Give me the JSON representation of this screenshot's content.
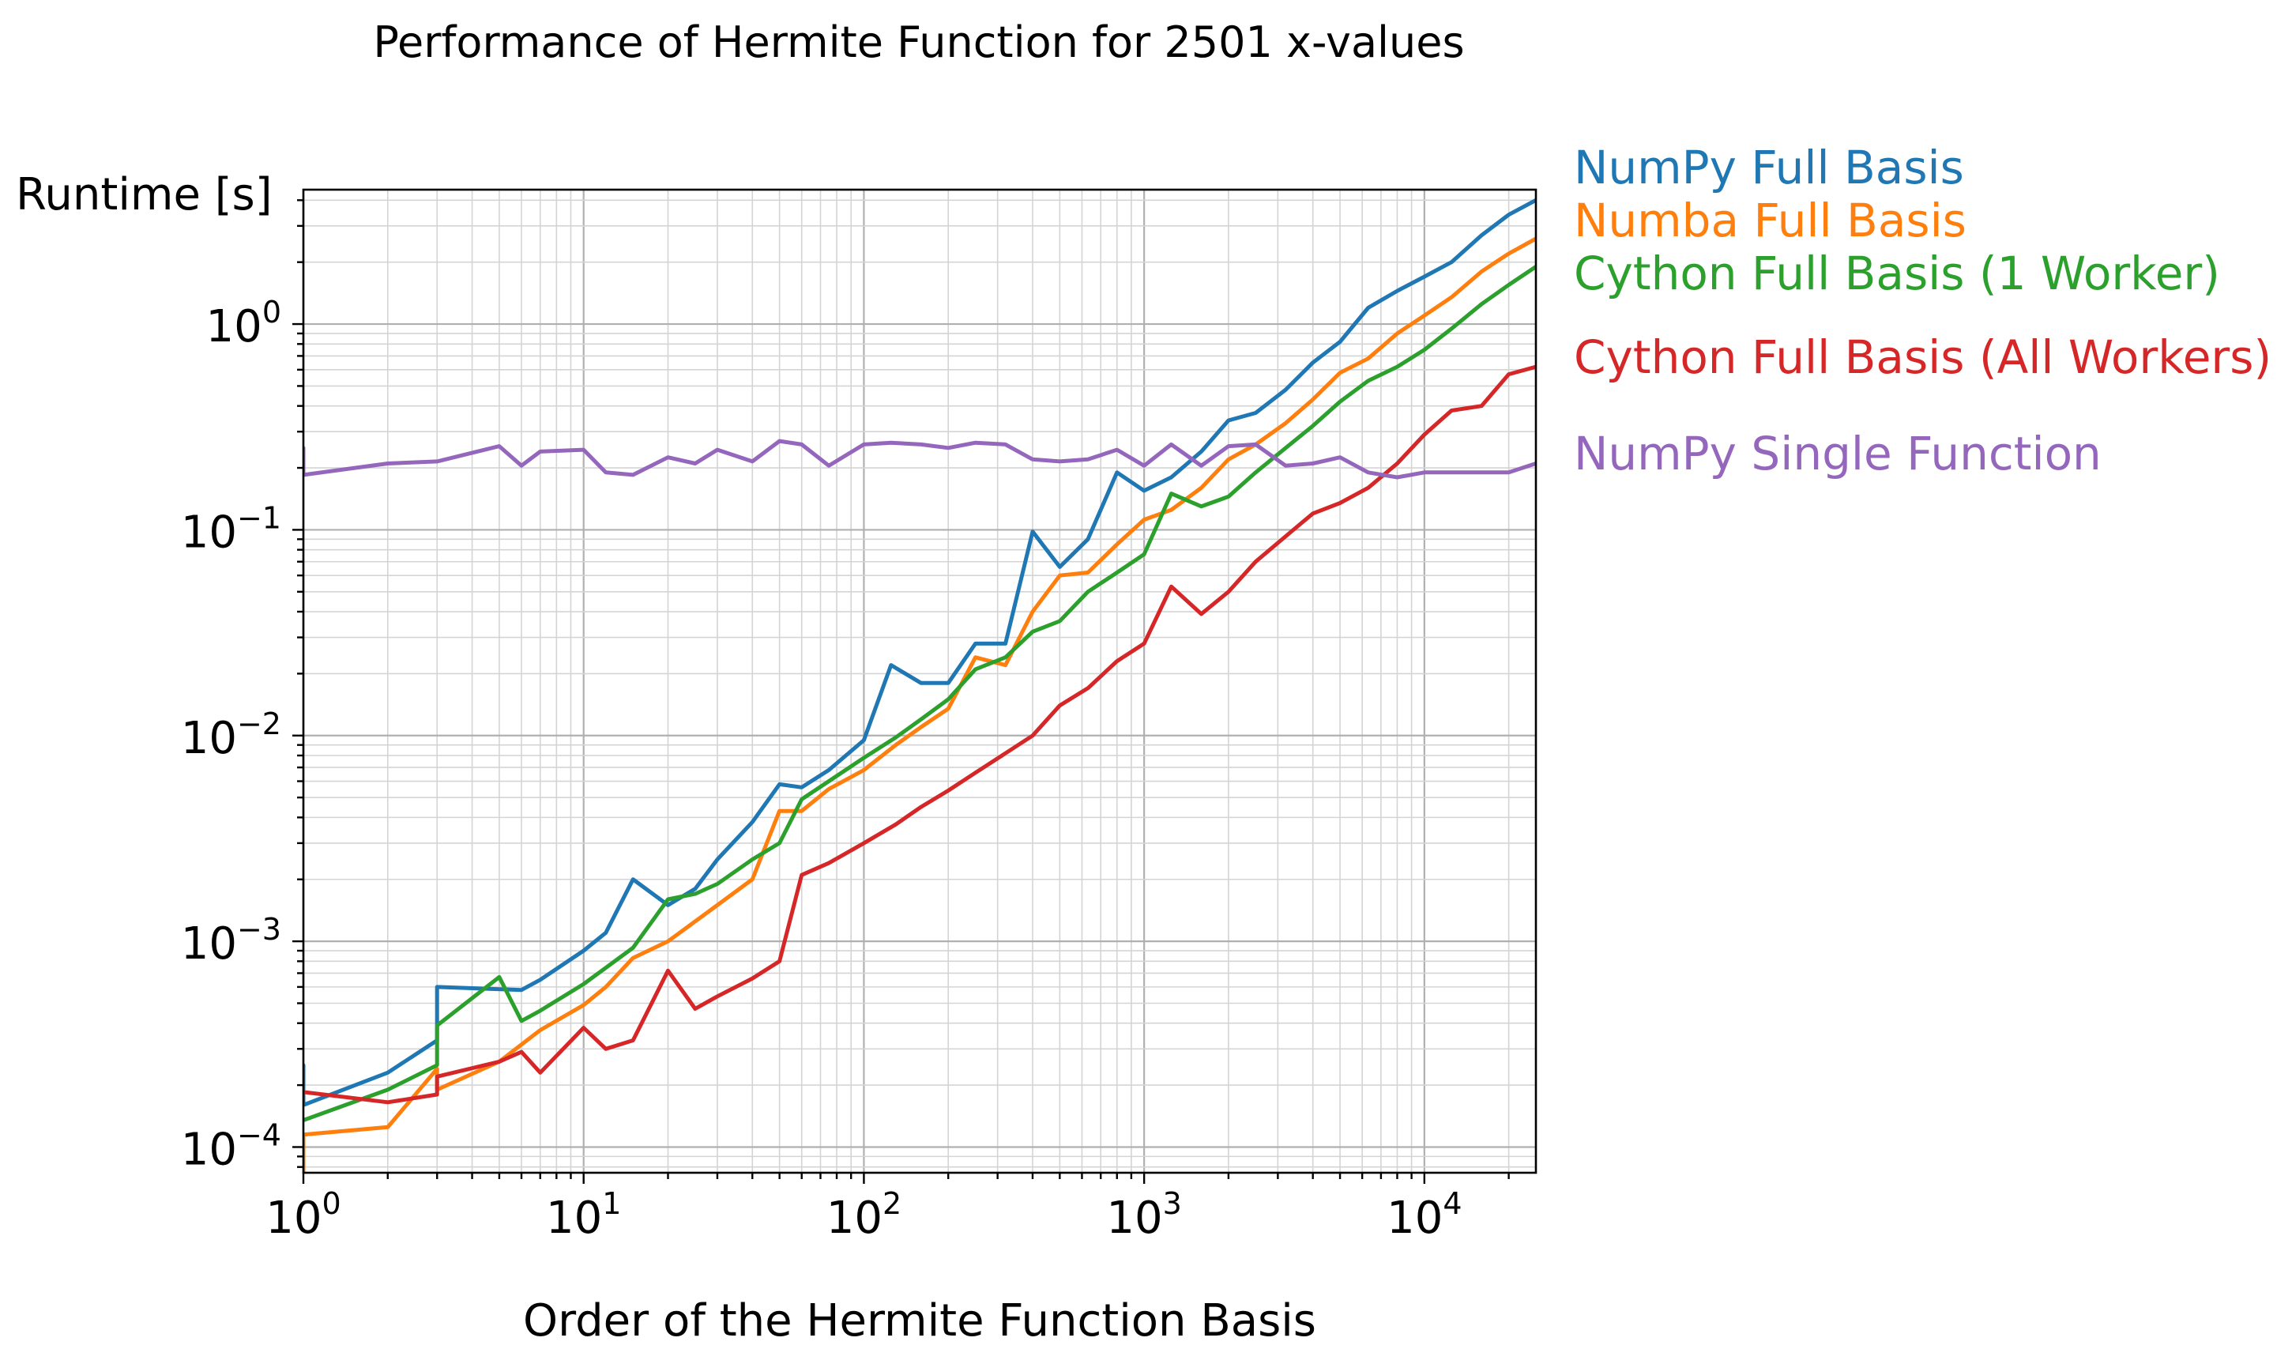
{
  "chart_data": {
    "type": "line",
    "title": "Performance of Hermite Function for 2501 x-values",
    "xlabel": "Order of the Hermite Function Basis",
    "ylabel": "Runtime [s]",
    "xscale": "log",
    "yscale": "log",
    "xlim": [
      1,
      25000
    ],
    "ylim": [
      7.5e-05,
      4.5
    ],
    "grid": "on (major and minor)",
    "legend": "right, outside plot",
    "x_ticks": [
      {
        "base": "10",
        "exp": "0",
        "value": 1
      },
      {
        "base": "10",
        "exp": "1",
        "value": 10
      },
      {
        "base": "10",
        "exp": "2",
        "value": 100
      },
      {
        "base": "10",
        "exp": "3",
        "value": 1000
      },
      {
        "base": "10",
        "exp": "4",
        "value": 10000
      }
    ],
    "y_ticks": [
      {
        "base": "10",
        "exp": "−4",
        "value": 0.0001
      },
      {
        "base": "10",
        "exp": "−3",
        "value": 0.001
      },
      {
        "base": "10",
        "exp": "−2",
        "value": 0.01
      },
      {
        "base": "10",
        "exp": "−1",
        "value": 0.1
      },
      {
        "base": "10",
        "exp": "0",
        "value": 1
      }
    ],
    "series": [
      {
        "name": "NumPy Full Basis",
        "color": "#1f77b4",
        "points": [
          [
            1,
            0.00025
          ],
          [
            1,
            0.00016
          ],
          [
            2,
            0.00023
          ],
          [
            3,
            0.00033
          ],
          [
            3,
            0.0006
          ],
          [
            6,
            0.00058
          ],
          [
            7,
            0.00065
          ],
          [
            10,
            0.0009
          ],
          [
            12,
            0.0011
          ],
          [
            15,
            0.002
          ],
          [
            20,
            0.0015
          ],
          [
            25,
            0.0018
          ],
          [
            30,
            0.0025
          ],
          [
            40,
            0.0038
          ],
          [
            50,
            0.0058
          ],
          [
            60,
            0.0056
          ],
          [
            75,
            0.0068
          ],
          [
            100,
            0.0095
          ],
          [
            125,
            0.022
          ],
          [
            160,
            0.018
          ],
          [
            200,
            0.018
          ],
          [
            250,
            0.028
          ],
          [
            320,
            0.028
          ],
          [
            400,
            0.098
          ],
          [
            500,
            0.066
          ],
          [
            630,
            0.09
          ],
          [
            800,
            0.19
          ],
          [
            1000,
            0.155
          ],
          [
            1250,
            0.18
          ],
          [
            1600,
            0.24
          ],
          [
            2000,
            0.34
          ],
          [
            2500,
            0.37
          ],
          [
            3200,
            0.48
          ],
          [
            4000,
            0.65
          ],
          [
            5000,
            0.82
          ],
          [
            6300,
            1.2
          ],
          [
            8000,
            1.45
          ],
          [
            10000,
            1.7
          ],
          [
            12500,
            2.0
          ],
          [
            16000,
            2.7
          ],
          [
            20000,
            3.4
          ],
          [
            25000,
            4.0
          ]
        ]
      },
      {
        "name": "Numba Full Basis",
        "color": "#ff7f0e",
        "points": [
          [
            1,
            7.5e-05
          ],
          [
            1,
            0.000115
          ],
          [
            2,
            0.000125
          ],
          [
            3,
            0.00024
          ],
          [
            3,
            0.00019
          ],
          [
            5,
            0.00026
          ],
          [
            7,
            0.00037
          ],
          [
            10,
            0.00049
          ],
          [
            12,
            0.0006
          ],
          [
            15,
            0.00083
          ],
          [
            20,
            0.001
          ],
          [
            30,
            0.0015
          ],
          [
            40,
            0.002
          ],
          [
            50,
            0.0043
          ],
          [
            60,
            0.0043
          ],
          [
            75,
            0.0055
          ],
          [
            100,
            0.0068
          ],
          [
            130,
            0.009
          ],
          [
            160,
            0.011
          ],
          [
            200,
            0.0135
          ],
          [
            250,
            0.024
          ],
          [
            320,
            0.022
          ],
          [
            400,
            0.04
          ],
          [
            500,
            0.06
          ],
          [
            630,
            0.062
          ],
          [
            800,
            0.085
          ],
          [
            1000,
            0.112
          ],
          [
            1250,
            0.125
          ],
          [
            1600,
            0.16
          ],
          [
            2000,
            0.22
          ],
          [
            2500,
            0.26
          ],
          [
            3200,
            0.33
          ],
          [
            4000,
            0.43
          ],
          [
            5000,
            0.58
          ],
          [
            6300,
            0.68
          ],
          [
            8000,
            0.9
          ],
          [
            10000,
            1.1
          ],
          [
            12500,
            1.35
          ],
          [
            16000,
            1.8
          ],
          [
            20000,
            2.2
          ],
          [
            25000,
            2.6
          ]
        ]
      },
      {
        "name": "Cython Full Basis (1 Worker)",
        "color": "#2ca02c",
        "points": [
          [
            1,
            0.000135
          ],
          [
            2,
            0.00019
          ],
          [
            3,
            0.00025
          ],
          [
            3,
            0.00039
          ],
          [
            5,
            0.00067
          ],
          [
            6,
            0.00041
          ],
          [
            7,
            0.00046
          ],
          [
            10,
            0.00062
          ],
          [
            15,
            0.00093
          ],
          [
            20,
            0.0016
          ],
          [
            25,
            0.0017
          ],
          [
            30,
            0.0019
          ],
          [
            40,
            0.0025
          ],
          [
            50,
            0.003
          ],
          [
            60,
            0.0049
          ],
          [
            75,
            0.006
          ],
          [
            100,
            0.0078
          ],
          [
            130,
            0.0098
          ],
          [
            160,
            0.012
          ],
          [
            200,
            0.015
          ],
          [
            250,
            0.021
          ],
          [
            320,
            0.024
          ],
          [
            400,
            0.032
          ],
          [
            500,
            0.036
          ],
          [
            630,
            0.05
          ],
          [
            800,
            0.062
          ],
          [
            1000,
            0.076
          ],
          [
            1250,
            0.15
          ],
          [
            1600,
            0.13
          ],
          [
            2000,
            0.145
          ],
          [
            2500,
            0.19
          ],
          [
            3200,
            0.25
          ],
          [
            4000,
            0.32
          ],
          [
            5000,
            0.42
          ],
          [
            6300,
            0.53
          ],
          [
            8000,
            0.62
          ],
          [
            10000,
            0.75
          ],
          [
            12500,
            0.95
          ],
          [
            16000,
            1.25
          ],
          [
            20000,
            1.55
          ],
          [
            25000,
            1.9
          ]
        ]
      },
      {
        "name": "Cython Full Basis (All Workers)",
        "color": "#d62728",
        "points": [
          [
            1,
            0.000185
          ],
          [
            2,
            0.000165
          ],
          [
            3,
            0.00018
          ],
          [
            3,
            0.00022
          ],
          [
            5,
            0.00026
          ],
          [
            6,
            0.00029
          ],
          [
            7,
            0.00023
          ],
          [
            10,
            0.00038
          ],
          [
            12,
            0.0003
          ],
          [
            15,
            0.00033
          ],
          [
            20,
            0.00072
          ],
          [
            25,
            0.00047
          ],
          [
            30,
            0.00054
          ],
          [
            40,
            0.00066
          ],
          [
            50,
            0.0008
          ],
          [
            60,
            0.0021
          ],
          [
            75,
            0.0024
          ],
          [
            100,
            0.003
          ],
          [
            130,
            0.0037
          ],
          [
            160,
            0.0045
          ],
          [
            200,
            0.0054
          ],
          [
            250,
            0.0066
          ],
          [
            320,
            0.0082
          ],
          [
            400,
            0.01
          ],
          [
            500,
            0.014
          ],
          [
            630,
            0.017
          ],
          [
            800,
            0.023
          ],
          [
            1000,
            0.028
          ],
          [
            1250,
            0.053
          ],
          [
            1600,
            0.039
          ],
          [
            2000,
            0.05
          ],
          [
            2500,
            0.07
          ],
          [
            3200,
            0.093
          ],
          [
            4000,
            0.12
          ],
          [
            5000,
            0.135
          ],
          [
            6300,
            0.16
          ],
          [
            8000,
            0.21
          ],
          [
            10000,
            0.29
          ],
          [
            12500,
            0.38
          ],
          [
            16000,
            0.4
          ],
          [
            20000,
            0.57
          ],
          [
            25000,
            0.62
          ]
        ]
      },
      {
        "name": "NumPy Single Function",
        "color": "#9467bd",
        "points": [
          [
            1,
            0.25
          ],
          [
            1,
            0.185
          ],
          [
            2,
            0.21
          ],
          [
            3,
            0.215
          ],
          [
            5,
            0.255
          ],
          [
            6,
            0.205
          ],
          [
            7,
            0.24
          ],
          [
            10,
            0.245
          ],
          [
            12,
            0.19
          ],
          [
            15,
            0.185
          ],
          [
            20,
            0.225
          ],
          [
            25,
            0.21
          ],
          [
            30,
            0.245
          ],
          [
            40,
            0.215
          ],
          [
            50,
            0.27
          ],
          [
            60,
            0.26
          ],
          [
            75,
            0.205
          ],
          [
            100,
            0.26
          ],
          [
            125,
            0.265
          ],
          [
            160,
            0.26
          ],
          [
            200,
            0.25
          ],
          [
            250,
            0.265
          ],
          [
            320,
            0.26
          ],
          [
            400,
            0.22
          ],
          [
            500,
            0.215
          ],
          [
            630,
            0.22
          ],
          [
            800,
            0.245
          ],
          [
            1000,
            0.205
          ],
          [
            1250,
            0.26
          ],
          [
            1600,
            0.205
          ],
          [
            2000,
            0.255
          ],
          [
            2500,
            0.26
          ],
          [
            3200,
            0.205
          ],
          [
            4000,
            0.21
          ],
          [
            5000,
            0.225
          ],
          [
            6300,
            0.19
          ],
          [
            8000,
            0.18
          ],
          [
            10000,
            0.19
          ],
          [
            12500,
            0.19
          ],
          [
            16000,
            0.19
          ],
          [
            20000,
            0.19
          ],
          [
            25000,
            0.21
          ]
        ]
      }
    ]
  }
}
